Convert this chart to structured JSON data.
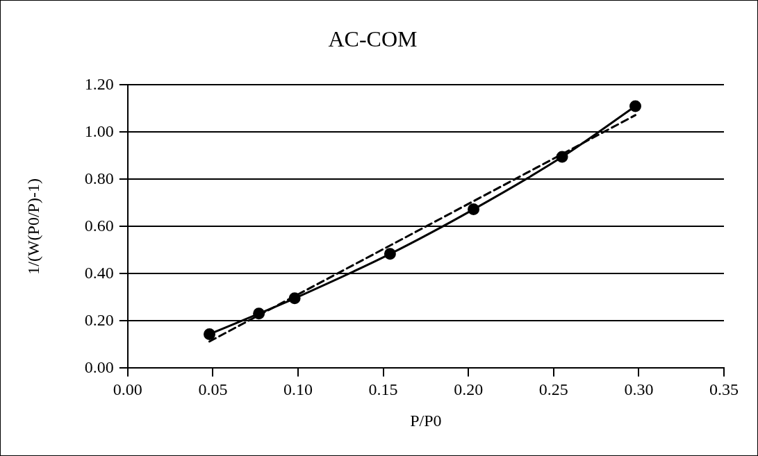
{
  "chart_data": {
    "type": "line",
    "title": "AC-COM",
    "xlabel": "P/P0",
    "ylabel": "1/(W(P0/P)-1)",
    "xlim": [
      0,
      0.35
    ],
    "xticks": [
      {
        "value": 0,
        "label": "0.00"
      },
      {
        "value": 0.05,
        "label": "0.05"
      },
      {
        "value": 0.1,
        "label": "0.10"
      },
      {
        "value": 0.15,
        "label": "0.15"
      },
      {
        "value": 0.2,
        "label": "0.20"
      },
      {
        "value": 0.25,
        "label": "0.25"
      },
      {
        "value": 0.3,
        "label": "0.30"
      },
      {
        "value": 0.35,
        "label": "0.35"
      }
    ],
    "ylim": [
      0,
      1.2
    ],
    "yticks": [
      {
        "value": 0,
        "label": "0.00"
      },
      {
        "value": 0.2,
        "label": "0.20"
      },
      {
        "value": 0.4,
        "label": "0.40"
      },
      {
        "value": 0.6,
        "label": "0.60"
      },
      {
        "value": 0.8,
        "label": "0.80"
      },
      {
        "value": 1,
        "label": "1.00"
      },
      {
        "value": 1.2,
        "label": "1.20"
      }
    ],
    "grid": "y",
    "series": [
      {
        "type": "line",
        "color": "#000000",
        "marker": "circle",
        "line_style": "solid",
        "x": [
          0.048,
          0.077,
          0.098,
          0.154,
          0.203,
          0.255,
          0.298
        ],
        "values": [
          0.144,
          0.231,
          0.296,
          0.484,
          0.673,
          0.895,
          1.11
        ]
      },
      {
        "type": "line",
        "color": "#000000",
        "marker": "none",
        "line_style": "dashed",
        "x": [
          0.048,
          0.298
        ],
        "values": [
          0.113,
          1.072
        ]
      }
    ]
  }
}
